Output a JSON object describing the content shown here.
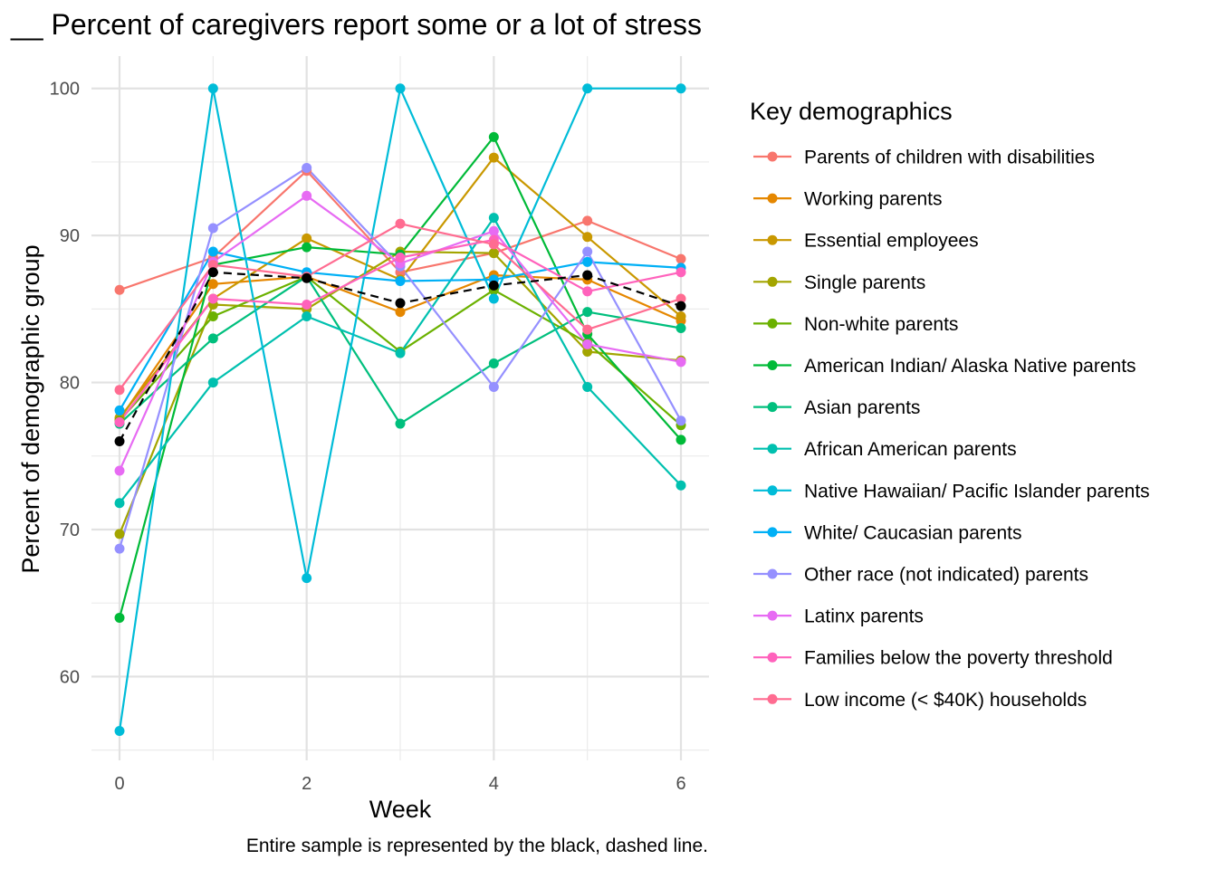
{
  "chart_data": {
    "type": "line",
    "title": "__ Percent of caregivers report some or a lot of stress",
    "xlabel": "Week",
    "ylabel": "Percent of demographic group",
    "caption": "Entire sample is represented by the black, dashed line.",
    "xlim": [
      -0.3,
      6.3
    ],
    "ylim": [
      54.3,
      102.2
    ],
    "x_ticks": [
      0,
      2,
      4,
      6
    ],
    "y_ticks": [
      60,
      70,
      80,
      90,
      100
    ],
    "grid": true,
    "legend": {
      "title": "Key demographics",
      "position": "right"
    },
    "x": [
      0,
      1,
      2,
      3,
      4,
      5,
      6
    ],
    "series": [
      {
        "name": "Parents of children with disabilities",
        "color": "#F8766D",
        "values": [
          86.3,
          88.5,
          94.4,
          87.5,
          88.8,
          91.0,
          88.4
        ]
      },
      {
        "name": "Working parents",
        "color": "#E58700",
        "values": [
          77.5,
          86.7,
          87.2,
          84.8,
          87.3,
          87.0,
          84.2
        ]
      },
      {
        "name": "Essential employees",
        "color": "#C99800",
        "values": [
          77.6,
          85.7,
          89.8,
          87.0,
          95.3,
          89.9,
          84.5
        ]
      },
      {
        "name": "Single parents",
        "color": "#A3A500",
        "values": [
          69.7,
          85.3,
          85.0,
          88.9,
          88.8,
          82.1,
          81.5
        ]
      },
      {
        "name": "Non-white parents",
        "color": "#6BB100",
        "values": [
          77.4,
          84.5,
          87.2,
          82.1,
          86.3,
          82.7,
          77.1
        ]
      },
      {
        "name": "American Indian/ Alaska Native parents",
        "color": "#00BA38",
        "values": [
          64.0,
          88.0,
          89.2,
          88.7,
          96.7,
          83.3,
          76.1
        ]
      },
      {
        "name": "Asian parents",
        "color": "#00BF7D",
        "values": [
          77.2,
          83.0,
          87.2,
          77.2,
          81.3,
          84.8,
          83.7
        ]
      },
      {
        "name": "African American parents",
        "color": "#00C0AF",
        "values": [
          71.8,
          80.0,
          84.5,
          82.0,
          91.2,
          79.7,
          73.0
        ]
      },
      {
        "name": "Native Hawaiian/ Pacific Islander parents",
        "color": "#00BCD8",
        "values": [
          56.3,
          100.0,
          66.7,
          100.0,
          85.7,
          100.0,
          100.0
        ]
      },
      {
        "name": "White/ Caucasian parents",
        "color": "#00B0F6",
        "values": [
          78.1,
          88.9,
          87.5,
          86.9,
          87.0,
          88.2,
          87.8
        ]
      },
      {
        "name": "Other race (not indicated) parents",
        "color": "#9590FF",
        "values": [
          68.7,
          90.5,
          94.6,
          87.9,
          79.7,
          88.9,
          77.4
        ]
      },
      {
        "name": "Latinx parents",
        "color": "#E76BF3",
        "values": [
          74.0,
          88.2,
          92.7,
          88.1,
          90.3,
          82.6,
          81.4
        ]
      },
      {
        "name": "Families below the poverty threshold",
        "color": "#FF62BC",
        "values": [
          77.3,
          85.7,
          85.3,
          88.5,
          89.7,
          86.2,
          87.5
        ]
      },
      {
        "name": "Low income (< $40K) households",
        "color": "#FF6C91",
        "values": [
          79.5,
          88.0,
          87.2,
          90.8,
          89.4,
          83.6,
          85.7
        ]
      }
    ],
    "overall": {
      "color": "#000000",
      "dashed": true,
      "values": [
        76.0,
        87.5,
        87.1,
        85.4,
        86.6,
        87.3,
        85.2
      ]
    }
  }
}
